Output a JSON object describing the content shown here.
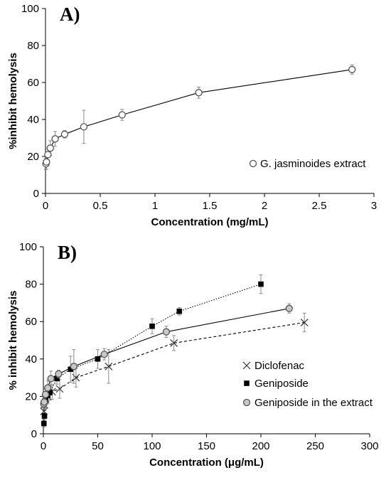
{
  "colors": {
    "axis": "#000000",
    "line": "#000000",
    "errorbar": "#8c8c8c",
    "marker_gray": "#c8c8c8",
    "background": "#ffffff"
  },
  "chart_data": [
    {
      "type": "line",
      "panel_label": "A)",
      "xlabel": "Concentration (mg/mL)",
      "ylabel": "%inhibit hemolysis",
      "xlim": [
        0,
        3
      ],
      "ylim": [
        0,
        100
      ],
      "xticks": [
        "0",
        "0.5",
        "1",
        "1.5",
        "2",
        "2.5",
        "3"
      ],
      "yticks": [
        "0",
        "20",
        "40",
        "60",
        "80",
        "100"
      ],
      "grid": false,
      "legend_position": "right",
      "series": [
        {
          "name": "G. jasminoides extract",
          "marker": "open-circle",
          "line_style": "solid",
          "x": [
            0.0044,
            0.0088,
            0.022,
            0.044,
            0.088,
            0.175,
            0.35,
            0.7,
            1.4,
            2.8
          ],
          "y": [
            16,
            17,
            21,
            24.5,
            29.5,
            32,
            36,
            42.5,
            54.5,
            67
          ],
          "error": [
            3,
            4,
            3,
            4,
            4,
            2,
            9,
            3,
            3,
            2.5
          ]
        }
      ]
    },
    {
      "type": "line",
      "panel_label": "B)",
      "xlabel": "Concentration (μg/mL)",
      "ylabel": "% inhibit hemolysis",
      "xlim": [
        0,
        300
      ],
      "ylim": [
        0,
        100
      ],
      "xticks": [
        "0",
        "50",
        "100",
        "150",
        "200",
        "250",
        "300"
      ],
      "yticks": [
        "0",
        "20",
        "40",
        "60",
        "80",
        "100"
      ],
      "grid": false,
      "legend_position": "bottom-right",
      "series": [
        {
          "name": "Diclofenac",
          "marker": "x",
          "line_style": "dashed",
          "x": [
            0.5,
            1,
            2,
            4,
            8,
            15,
            30,
            60,
            120,
            240
          ],
          "y": [
            12,
            15.5,
            18.5,
            20,
            22.5,
            24,
            30,
            36,
            48.5,
            59.5
          ],
          "error": [
            3,
            3,
            3,
            4,
            4,
            5,
            5,
            9,
            4,
            5
          ]
        },
        {
          "name": "Geniposide",
          "marker": "filled-square",
          "line_style": "dotted",
          "x": [
            0.5,
            1,
            2,
            4,
            6,
            12.5,
            25,
            50,
            100,
            125,
            200
          ],
          "y": [
            5.5,
            9.5,
            18,
            20.5,
            22,
            29.5,
            34.5,
            40,
            57.5,
            65.5,
            80
          ],
          "error": [
            2,
            2,
            4,
            3,
            4,
            3,
            7,
            5,
            4,
            2,
            5
          ]
        },
        {
          "name": "Geniposide in the extract",
          "marker": "gray-circle",
          "line_style": "solid",
          "x": [
            0.4,
            0.8,
            2,
            4,
            7,
            14,
            28,
            56,
            113,
            226
          ],
          "y": [
            16,
            17,
            21,
            24.5,
            29.5,
            32,
            36,
            42.5,
            54.5,
            67
          ],
          "error": [
            3,
            4,
            3,
            4,
            4,
            2,
            9,
            3,
            3,
            2.5
          ]
        }
      ]
    }
  ]
}
